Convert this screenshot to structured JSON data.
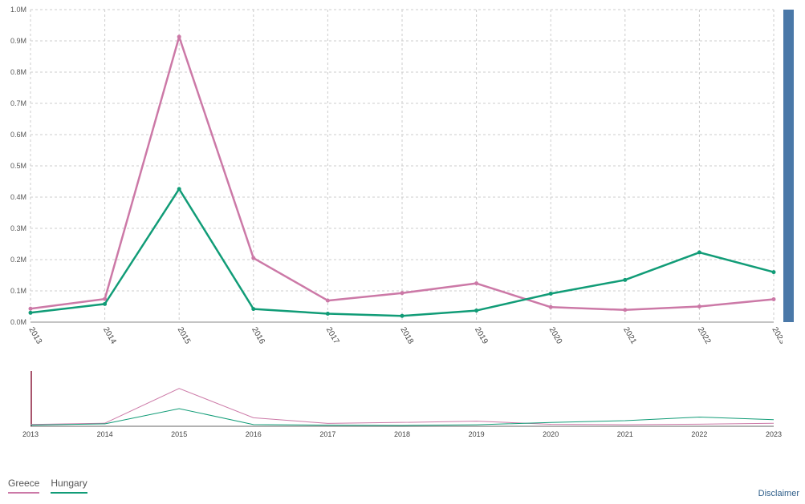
{
  "chart_data": {
    "type": "line",
    "x": [
      "2013",
      "2014",
      "2015",
      "2016",
      "2017",
      "2018",
      "2019",
      "2020",
      "2021",
      "2022",
      "2023"
    ],
    "ylim": [
      0,
      1.0
    ],
    "yunit": "M",
    "y_ticks": [
      "0.0M",
      "0.1M",
      "0.2M",
      "0.3M",
      "0.4M",
      "0.5M",
      "0.6M",
      "0.7M",
      "0.8M",
      "0.9M",
      "1.0M"
    ],
    "grid": true,
    "series": [
      {
        "name": "Greece",
        "color": "#cc79a7",
        "values": [
          0.043,
          0.074,
          0.913,
          0.205,
          0.069,
          0.093,
          0.124,
          0.048,
          0.039,
          0.05,
          0.073
        ]
      },
      {
        "name": "Hungary",
        "color": "#119c77",
        "values": [
          0.03,
          0.058,
          0.426,
          0.042,
          0.027,
          0.02,
          0.037,
          0.091,
          0.135,
          0.223,
          0.16
        ]
      }
    ]
  },
  "legend": {
    "items": [
      "Greece",
      "Hungary"
    ]
  },
  "footer": {
    "disclaimer": "Disclaimer"
  }
}
